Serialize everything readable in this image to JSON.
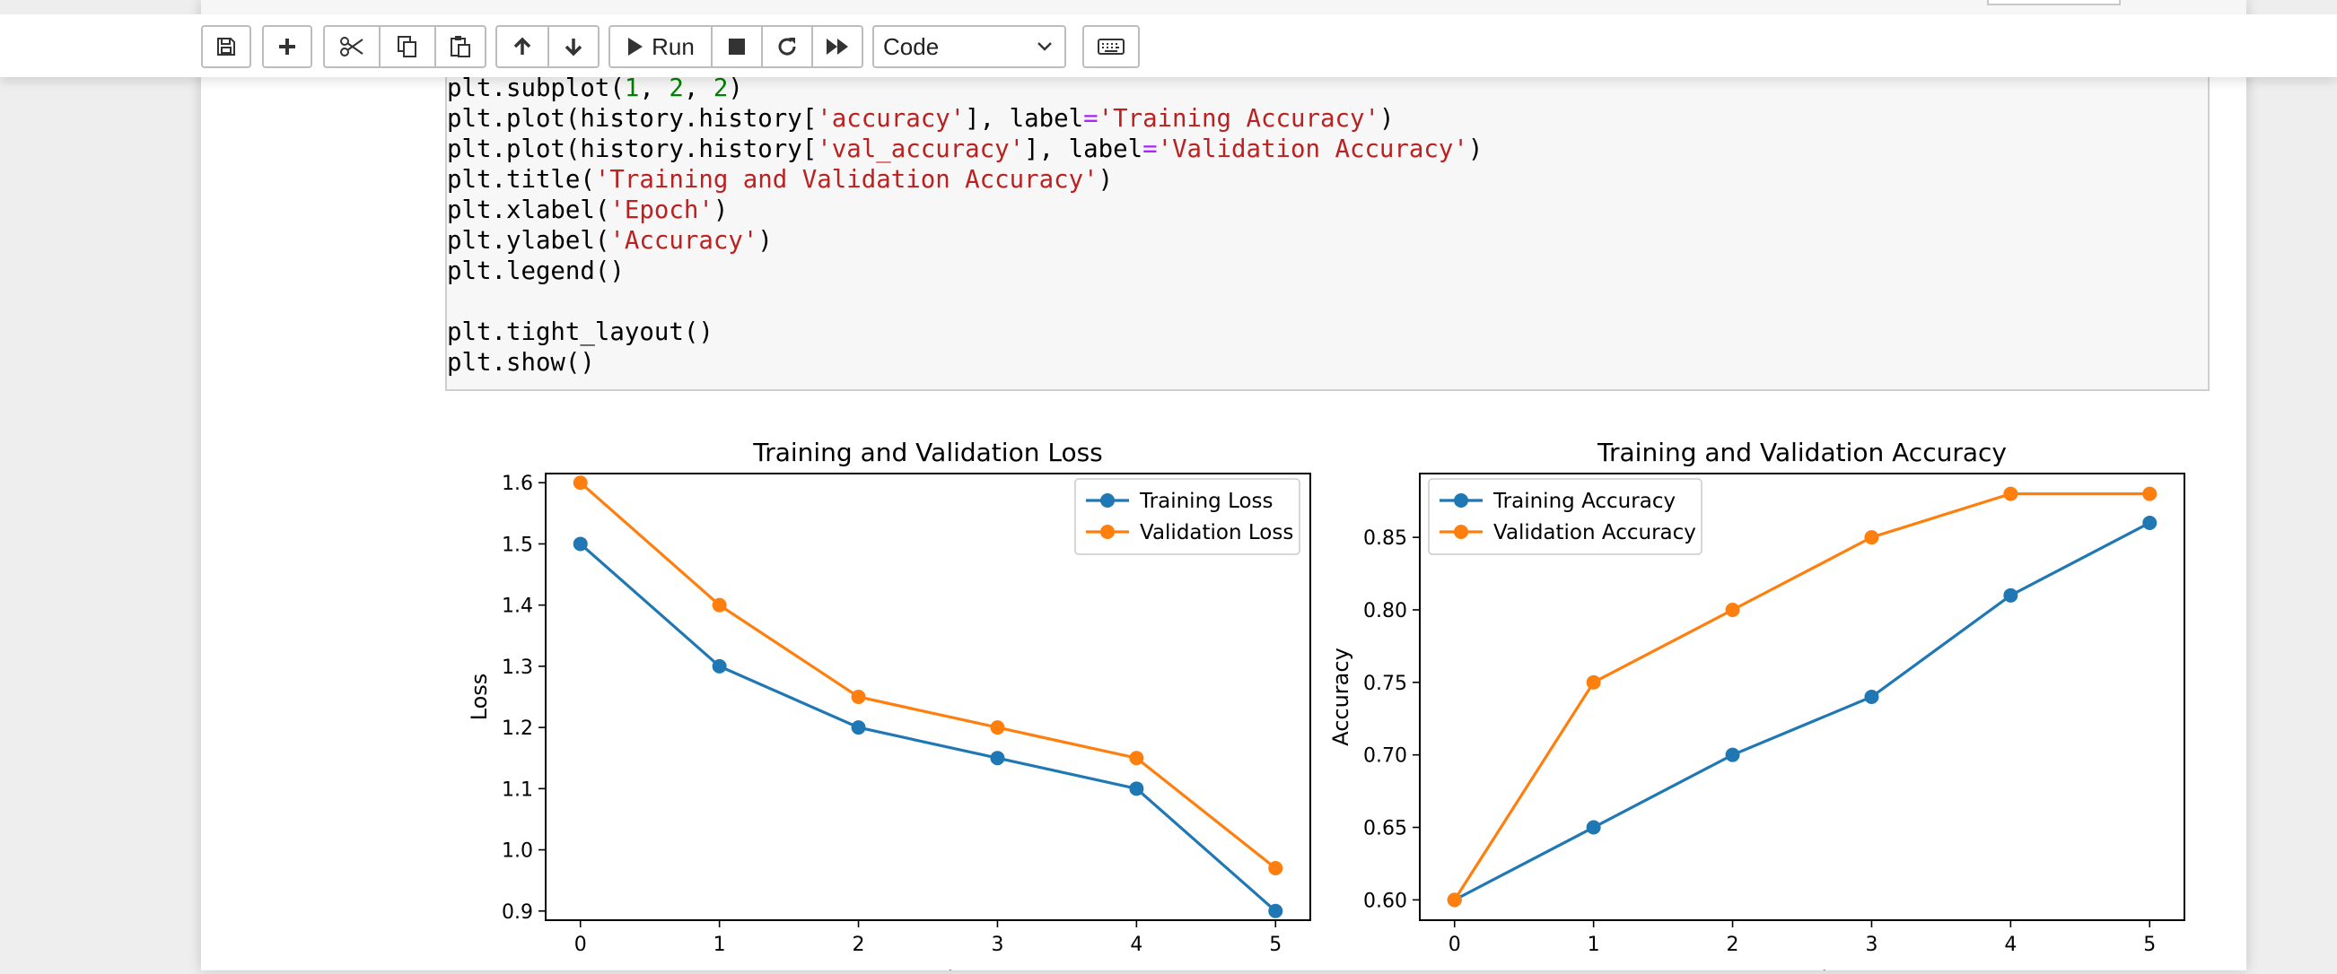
{
  "toolbar": {
    "buttons": [
      {
        "name": "save-button",
        "icon": "save-icon"
      },
      {
        "name": "insert-cell-button",
        "icon": "plus-icon"
      },
      {
        "name": "cut-button",
        "icon": "scissors-icon"
      },
      {
        "name": "copy-button",
        "icon": "copy-icon"
      },
      {
        "name": "paste-button",
        "icon": "paste-icon"
      },
      {
        "name": "move-up-button",
        "icon": "arrow-up-icon"
      },
      {
        "name": "move-down-button",
        "icon": "arrow-down-icon"
      },
      {
        "name": "interrupt-button",
        "icon": "stop-icon"
      },
      {
        "name": "restart-button",
        "icon": "restart-icon"
      },
      {
        "name": "restart-run-all-button",
        "icon": "fast-forward-icon"
      },
      {
        "name": "command-palette-button",
        "icon": "keyboard-icon"
      }
    ],
    "run_label": "Run",
    "cell_type": "Code"
  },
  "code_cell": {
    "lines": [
      "plt.subplot(1, 2, 2)",
      "plt.plot(history.history['accuracy'], label='Training Accuracy')",
      "plt.plot(history.history['val_accuracy'], label='Validation Accuracy')",
      "plt.title('Training and Validation Accuracy')",
      "plt.xlabel('Epoch')",
      "plt.ylabel('Accuracy')",
      "plt.legend()",
      "",
      "plt.tight_layout()",
      "plt.show()"
    ]
  },
  "colors": {
    "series_blue": "#1f77b4",
    "series_orange": "#ff7f0e",
    "code_number": "#008000",
    "code_string": "#ba2121",
    "code_operator": "#aa22ff"
  },
  "chart_data": [
    {
      "type": "line",
      "title": "Training and Validation Loss",
      "xlabel": "Epoch",
      "ylabel": "Loss",
      "x": [
        0,
        1,
        2,
        3,
        4,
        5
      ],
      "xlim": [
        -0.25,
        5.25
      ],
      "ylim": [
        0.885,
        1.615
      ],
      "xticks": [
        "0",
        "1",
        "2",
        "3",
        "4",
        "5"
      ],
      "yticks": [
        "0.9",
        "1.0",
        "1.1",
        "1.2",
        "1.3",
        "1.4",
        "1.5",
        "1.6"
      ],
      "grid": false,
      "legend_position": "upper right",
      "series": [
        {
          "name": "Training Loss",
          "color": "#1f77b4",
          "values": [
            1.5,
            1.3,
            1.2,
            1.15,
            1.1,
            0.9
          ]
        },
        {
          "name": "Validation Loss",
          "color": "#ff7f0e",
          "values": [
            1.6,
            1.4,
            1.25,
            1.2,
            1.15,
            0.97
          ]
        }
      ]
    },
    {
      "type": "line",
      "title": "Training and Validation Accuracy",
      "xlabel": "Epoch",
      "ylabel": "Accuracy",
      "x": [
        0,
        1,
        2,
        3,
        4,
        5
      ],
      "xlim": [
        -0.25,
        5.25
      ],
      "ylim": [
        0.586,
        0.894
      ],
      "xticks": [
        "0",
        "1",
        "2",
        "3",
        "4",
        "5"
      ],
      "yticks": [
        "0.60",
        "0.65",
        "0.70",
        "0.75",
        "0.80",
        "0.85"
      ],
      "grid": false,
      "legend_position": "upper left",
      "series": [
        {
          "name": "Training Accuracy",
          "color": "#1f77b4",
          "values": [
            0.6,
            0.65,
            0.7,
            0.74,
            0.81,
            0.86
          ]
        },
        {
          "name": "Validation Accuracy",
          "color": "#ff7f0e",
          "values": [
            0.6,
            0.75,
            0.8,
            0.85,
            0.88,
            0.88
          ]
        }
      ]
    }
  ]
}
